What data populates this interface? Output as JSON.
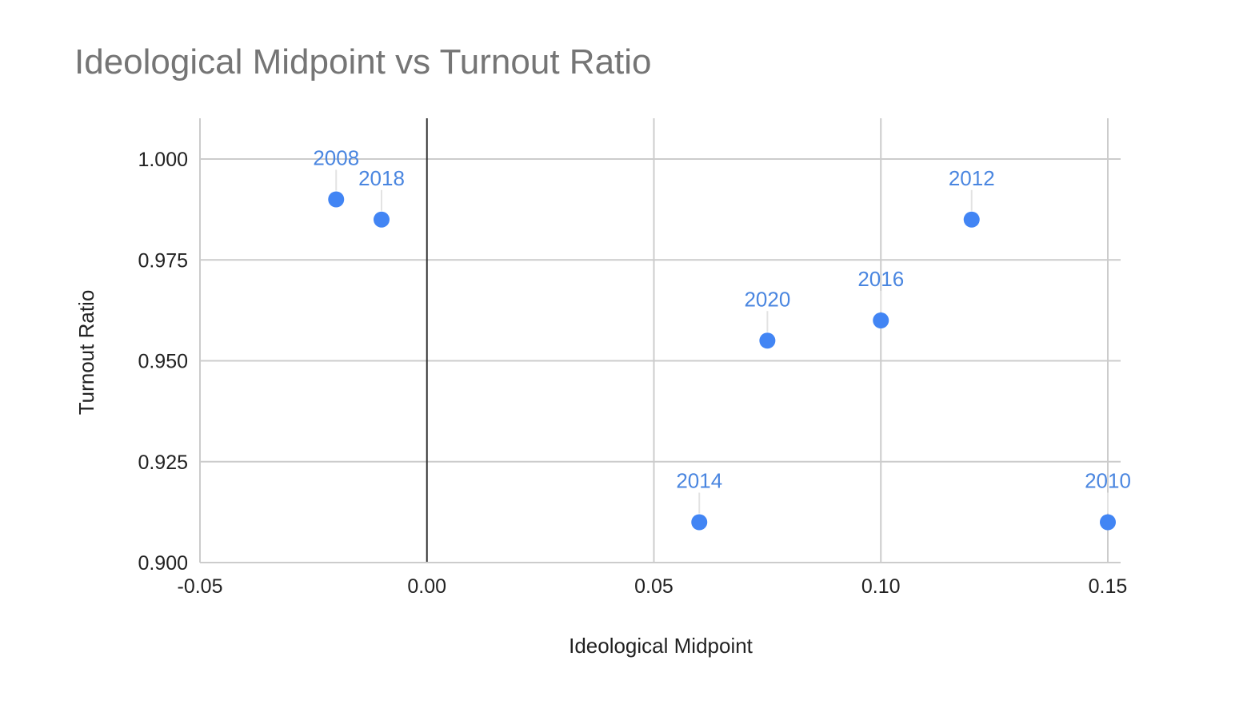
{
  "chart_data": {
    "type": "scatter",
    "title": "Ideological Midpoint vs Turnout Ratio",
    "xlabel": "Ideological Midpoint",
    "ylabel": "Turnout Ratio",
    "xlim": [
      -0.05,
      0.15
    ],
    "ylim": [
      0.9,
      1.0
    ],
    "x_ticks": [
      -0.05,
      0.0,
      0.05,
      0.1,
      0.15
    ],
    "x_tick_labels": [
      "-0.05",
      "0.00",
      "0.05",
      "0.10",
      "0.15"
    ],
    "y_ticks": [
      0.9,
      0.925,
      0.95,
      0.975,
      1.0
    ],
    "y_tick_labels": [
      "0.900",
      "0.925",
      "0.950",
      "0.975",
      "1.000"
    ],
    "grid": true,
    "point_color": "#4285f4",
    "label_color": "#4a86e0",
    "points": [
      {
        "label": "2008",
        "x": -0.02,
        "y": 0.99
      },
      {
        "label": "2018",
        "x": -0.01,
        "y": 0.985
      },
      {
        "label": "2012",
        "x": 0.12,
        "y": 0.985
      },
      {
        "label": "2016",
        "x": 0.1,
        "y": 0.96
      },
      {
        "label": "2020",
        "x": 0.075,
        "y": 0.955
      },
      {
        "label": "2014",
        "x": 0.06,
        "y": 0.91
      },
      {
        "label": "2010",
        "x": 0.15,
        "y": 0.91
      }
    ]
  }
}
